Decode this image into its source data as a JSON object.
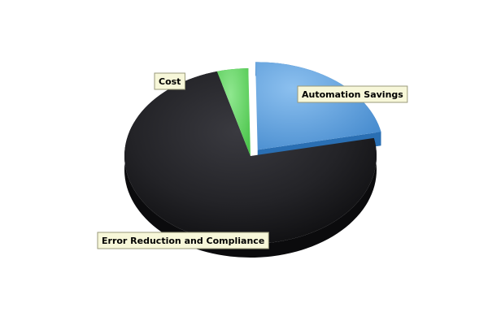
{
  "chart_data": {
    "type": "pie",
    "title": "",
    "style": "3d-exploded",
    "legend": "none",
    "slices": [
      {
        "label": "Automation Savings",
        "value": 22,
        "color": "#5b9bd8",
        "exploded": true
      },
      {
        "label": "Error Reduction and Compliance",
        "value": 74,
        "color": "#1f1f22",
        "exploded": false
      },
      {
        "label": "Cost",
        "value": 4,
        "color": "#5fd35f",
        "exploded": false
      }
    ]
  }
}
